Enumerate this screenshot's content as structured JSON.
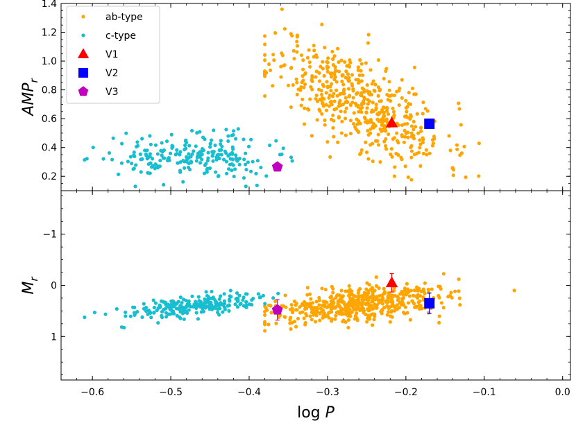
{
  "chart_data": [
    {
      "type": "scatter",
      "panel": "top",
      "ylabel": "AMP_r",
      "xlabel": "",
      "xlim": [
        -0.64,
        0.01
      ],
      "ylim": [
        0.1,
        1.4
      ],
      "yticks": [
        0.2,
        0.4,
        0.6,
        0.8,
        1.0,
        1.2,
        1.4
      ],
      "ytick_labels": [
        "0.2",
        "0.4",
        "0.6",
        "0.8",
        "1.0",
        "1.2",
        "1.4"
      ],
      "inverted_y": false,
      "series": [
        {
          "name": "ab-type",
          "color": "#ffa500",
          "marker": "dot",
          "gen": {
            "seed": 11,
            "n": 520,
            "xmean": -0.26,
            "xsd": 0.055,
            "xmin": -0.38,
            "xmax": -0.02,
            "ybase": 0.72,
            "slope": -2.6,
            "ysd": 0.16,
            "ymin": 0.15,
            "ymax": 1.36
          }
        },
        {
          "name": "c-type",
          "color": "#17becf",
          "marker": "dot",
          "gen": {
            "seed": 22,
            "n": 230,
            "xmean": -0.47,
            "xsd": 0.05,
            "xmin": -0.61,
            "xmax": -0.345,
            "ybase": 0.34,
            "slope": 0.0,
            "ysd": 0.075,
            "ymin": 0.13,
            "ymax": 0.53
          }
        },
        {
          "name": "V1",
          "color": "#ff0000",
          "marker": "triangle",
          "points": [
            {
              "x": -0.218,
              "y": 0.57
            }
          ]
        },
        {
          "name": "V2",
          "color": "#0000ff",
          "marker": "square",
          "points": [
            {
              "x": -0.17,
              "y": 0.565
            }
          ]
        },
        {
          "name": "V3",
          "color": "#bf00bf",
          "marker": "pentagon",
          "points": [
            {
              "x": -0.364,
              "y": 0.265
            }
          ]
        }
      ]
    },
    {
      "type": "scatter",
      "panel": "bottom",
      "ylabel": "M_r",
      "xlabel": "log P",
      "xlim": [
        -0.64,
        0.01
      ],
      "ylim": [
        -1.85,
        1.85
      ],
      "yticks": [
        -1,
        0,
        1
      ],
      "ytick_labels": [
        "−1",
        "0",
        "1"
      ],
      "inverted_y": true,
      "xticks": [
        -0.6,
        -0.5,
        -0.4,
        -0.3,
        -0.2,
        -0.1,
        0.0
      ],
      "xtick_labels": [
        "−0.6",
        "−0.5",
        "−0.4",
        "−0.3",
        "−0.2",
        "−0.1",
        "0.0"
      ],
      "series": [
        {
          "name": "ab-type",
          "color": "#ffa500",
          "marker": "dot",
          "gen": {
            "seed": 33,
            "n": 520,
            "xmean": -0.26,
            "xsd": 0.055,
            "xmin": -0.38,
            "xmax": -0.02,
            "ybase": 0.37,
            "slope": -1.7,
            "ysd": 0.16,
            "ymin": -0.45,
            "ymax": 1.2
          }
        },
        {
          "name": "c-type",
          "color": "#17becf",
          "marker": "dot",
          "gen": {
            "seed": 44,
            "n": 230,
            "xmean": -0.47,
            "xsd": 0.05,
            "xmin": -0.61,
            "xmax": -0.345,
            "ybase": 0.4,
            "slope": -1.6,
            "ysd": 0.11,
            "ymin": -0.25,
            "ymax": 1.1
          }
        },
        {
          "name": "V1",
          "color": "#ff0000",
          "marker": "triangle",
          "points": [
            {
              "x": -0.218,
              "y": -0.05,
              "err": 0.18
            }
          ]
        },
        {
          "name": "V2",
          "color": "#0000ff",
          "marker": "square",
          "points": [
            {
              "x": -0.17,
              "y": 0.35,
              "err": 0.2
            }
          ]
        },
        {
          "name": "V3",
          "color": "#bf00bf",
          "marker": "pentagon",
          "points": [
            {
              "x": -0.364,
              "y": 0.48,
              "err": 0.2
            }
          ]
        }
      ]
    }
  ],
  "legend": {
    "placement": "top-left",
    "entries": [
      {
        "label": "ab-type",
        "color": "#ffa500",
        "marker": "dot"
      },
      {
        "label": "c-type",
        "color": "#17becf",
        "marker": "dot"
      },
      {
        "label": "V1",
        "color": "#ff0000",
        "marker": "triangle"
      },
      {
        "label": "V2",
        "color": "#0000ff",
        "marker": "square"
      },
      {
        "label": "V3",
        "color": "#bf00bf",
        "marker": "pentagon"
      }
    ]
  }
}
